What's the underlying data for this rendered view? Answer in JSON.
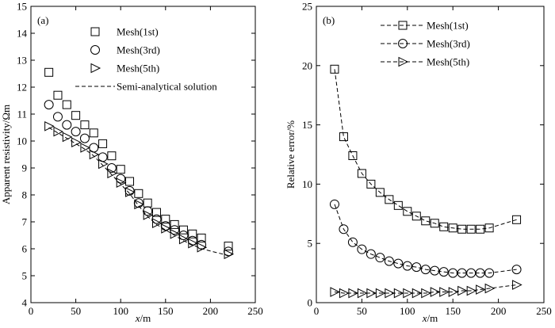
{
  "chart_data": [
    {
      "type": "scatter",
      "panel": "(a)",
      "xlabel_var": "x",
      "xlabel_unit": "/m",
      "ylabel": "Apparent resistivity/Ωm",
      "xlim": [
        0,
        250
      ],
      "ylim": [
        4,
        15
      ],
      "xticks": [
        0,
        50,
        100,
        150,
        200,
        250
      ],
      "yticks": [
        4,
        5,
        6,
        7,
        8,
        9,
        10,
        11,
        12,
        13,
        14,
        15
      ],
      "legend_position": "top-right",
      "series": [
        {
          "name": "Mesh(1st)",
          "marker": "square",
          "x": [
            20,
            30,
            40,
            50,
            60,
            70,
            80,
            90,
            100,
            110,
            120,
            130,
            140,
            150,
            160,
            170,
            180,
            190,
            220
          ],
          "y": [
            12.55,
            11.7,
            11.35,
            10.95,
            10.6,
            10.3,
            9.9,
            9.45,
            8.95,
            8.5,
            8.05,
            7.7,
            7.35,
            7.1,
            6.9,
            6.7,
            6.55,
            6.4,
            6.1
          ]
        },
        {
          "name": "Mesh(3rd)",
          "marker": "circle",
          "x": [
            20,
            30,
            40,
            50,
            60,
            70,
            80,
            90,
            100,
            110,
            120,
            130,
            140,
            150,
            160,
            170,
            180,
            190,
            220
          ],
          "y": [
            11.35,
            10.9,
            10.6,
            10.35,
            10.1,
            9.75,
            9.4,
            9.0,
            8.6,
            8.15,
            7.7,
            7.4,
            7.1,
            6.85,
            6.7,
            6.5,
            6.3,
            6.15,
            5.9
          ]
        },
        {
          "name": "Mesh(5th)",
          "marker": "triangle-right",
          "x": [
            20,
            30,
            40,
            50,
            60,
            70,
            80,
            90,
            100,
            110,
            120,
            130,
            140,
            150,
            160,
            170,
            180,
            190,
            220
          ],
          "y": [
            10.55,
            10.35,
            10.15,
            9.95,
            9.75,
            9.5,
            9.15,
            8.8,
            8.45,
            8.1,
            7.65,
            7.25,
            6.95,
            6.75,
            6.55,
            6.35,
            6.2,
            6.05,
            5.8
          ]
        },
        {
          "name": "Semi-analytical solution",
          "line": "dashed",
          "x": [
            20,
            30,
            40,
            50,
            60,
            70,
            80,
            90,
            100,
            110,
            120,
            130,
            140,
            150,
            160,
            170,
            180,
            190,
            220
          ],
          "y": [
            10.5,
            10.3,
            10.1,
            9.9,
            9.7,
            9.45,
            9.1,
            8.75,
            8.4,
            8.05,
            7.6,
            7.2,
            6.9,
            6.7,
            6.5,
            6.3,
            6.15,
            6.0,
            5.75
          ]
        }
      ]
    },
    {
      "type": "line",
      "panel": "(b)",
      "xlabel_var": "x",
      "xlabel_unit": "/m",
      "ylabel": "Relative error/%",
      "xlim": [
        0,
        250
      ],
      "ylim": [
        0,
        25
      ],
      "xticks": [
        0,
        50,
        100,
        150,
        200,
        250
      ],
      "yticks": [
        0,
        5,
        10,
        15,
        20,
        25
      ],
      "legend_position": "top-right",
      "series": [
        {
          "name": "Mesh(1st)",
          "marker": "square",
          "line": "dashed",
          "x": [
            20,
            30,
            40,
            50,
            60,
            70,
            80,
            90,
            100,
            110,
            120,
            130,
            140,
            150,
            160,
            170,
            180,
            190,
            220
          ],
          "y": [
            19.7,
            14.0,
            12.4,
            10.9,
            10.0,
            9.3,
            8.7,
            8.2,
            7.7,
            7.3,
            6.9,
            6.7,
            6.4,
            6.3,
            6.2,
            6.2,
            6.2,
            6.3,
            7.0
          ]
        },
        {
          "name": "Mesh(3rd)",
          "marker": "circle",
          "line": "dashed",
          "x": [
            20,
            30,
            40,
            50,
            60,
            70,
            80,
            90,
            100,
            110,
            120,
            130,
            140,
            150,
            160,
            170,
            180,
            190,
            220
          ],
          "y": [
            8.3,
            6.2,
            5.1,
            4.5,
            4.1,
            3.8,
            3.5,
            3.3,
            3.1,
            3.0,
            2.8,
            2.7,
            2.6,
            2.5,
            2.5,
            2.5,
            2.5,
            2.5,
            2.8
          ]
        },
        {
          "name": "Mesh(5th)",
          "marker": "triangle-right",
          "line": "dashed",
          "x": [
            20,
            30,
            40,
            50,
            60,
            70,
            80,
            90,
            100,
            110,
            120,
            130,
            140,
            150,
            160,
            170,
            180,
            190,
            220
          ],
          "y": [
            0.9,
            0.8,
            0.8,
            0.8,
            0.8,
            0.8,
            0.8,
            0.8,
            0.8,
            0.8,
            0.8,
            0.9,
            0.9,
            0.9,
            1.0,
            1.0,
            1.1,
            1.2,
            1.5
          ]
        }
      ]
    }
  ]
}
